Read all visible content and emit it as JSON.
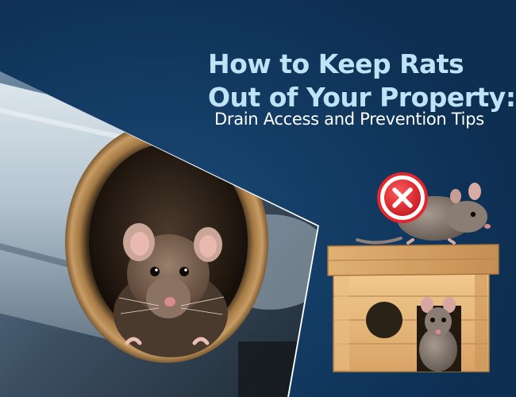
{
  "headline": {
    "line1": "How to Keep Rats",
    "line2": "Out of Your Property:"
  },
  "subtitle": "Drain Access and Prevention Tips",
  "colors": {
    "background": "#0f3358",
    "headline": "#bfe3f6",
    "subtitle": "#ffffff",
    "warning_badge": "#e3262c"
  },
  "icons": {
    "warning_badge": "x-mark-icon"
  }
}
